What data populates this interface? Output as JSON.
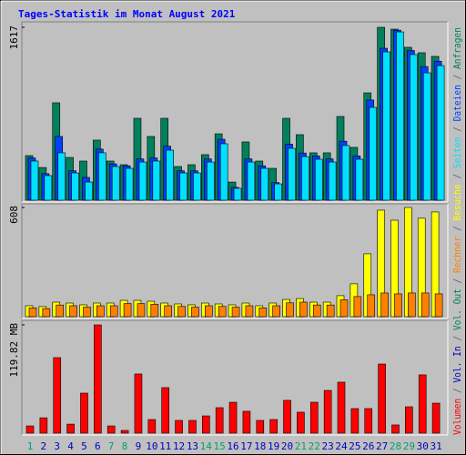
{
  "title": "Tages-Statistik im Monat August 2021",
  "categories": [
    "1",
    "2",
    "3",
    "4",
    "5",
    "6",
    "7",
    "8",
    "9",
    "10",
    "11",
    "12",
    "13",
    "14",
    "15",
    "16",
    "17",
    "18",
    "19",
    "20",
    "21",
    "22",
    "23",
    "24",
    "25",
    "26",
    "27",
    "28",
    "29",
    "30",
    "31"
  ],
  "category_colors": [
    "#00a070",
    "#0000c0",
    "#0000c0",
    "#0000c0",
    "#0000c0",
    "#0000c0",
    "#00a070",
    "#00a070",
    "#0000c0",
    "#0000c0",
    "#0000c0",
    "#0000c0",
    "#0000c0",
    "#00a070",
    "#00a070",
    "#0000c0",
    "#0000c0",
    "#0000c0",
    "#0000c0",
    "#0000c0",
    "#00a070",
    "#00a070",
    "#0000c0",
    "#0000c0",
    "#0000c0",
    "#0000c0",
    "#0000c0",
    "#00a070",
    "#00a070",
    "#0000c0",
    "#0000c0"
  ],
  "legend_separator": " / ",
  "chart_data": [
    {
      "type": "bar",
      "ylim": [
        0,
        1617
      ],
      "yticks": [
        1617
      ],
      "series": [
        {
          "name": "Anfragen",
          "color": "#00805c",
          "values": [
            417,
            306,
            911,
            400,
            366,
            562,
            366,
            332,
            766,
            596,
            766,
            315,
            332,
            426,
            621,
            170,
            545,
            366,
            298,
            766,
            613,
            443,
            443,
            783,
            494,
            1004,
            1617,
            1600,
            1430,
            1379,
            1345
          ]
        },
        {
          "name": "Dateien",
          "color": "#0040ff",
          "values": [
            395,
            248,
            596,
            275,
            213,
            478,
            340,
            322,
            386,
            395,
            505,
            275,
            275,
            386,
            570,
            120,
            386,
            322,
            165,
            524,
            441,
            414,
            386,
            552,
            414,
            937,
            1421,
            1590,
            1400,
            1250,
            1300
          ]
        },
        {
          "name": "Seiten",
          "color": "#00e0ff",
          "values": [
            366,
            230,
            443,
            255,
            170,
            443,
            315,
            298,
            357,
            366,
            468,
            255,
            255,
            357,
            528,
            111,
            357,
            298,
            153,
            485,
            408,
            383,
            357,
            511,
            383,
            868,
            1387,
            1574,
            1362,
            1191,
            1259
          ]
        }
      ]
    },
    {
      "type": "bar",
      "ylim": [
        0,
        608
      ],
      "yticks": [
        608
      ],
      "series": [
        {
          "name": "Besuche",
          "color": "#ffff00",
          "values": [
            61,
            56,
            81,
            76,
            66,
            76,
            76,
            91,
            91,
            86,
            76,
            71,
            66,
            76,
            71,
            66,
            76,
            61,
            76,
            96,
            101,
            81,
            81,
            117,
            183,
            350,
            593,
            537,
            608,
            548,
            583
          ]
        },
        {
          "name": "Rechner",
          "color": "#ff8000",
          "values": [
            49,
            45,
            65,
            61,
            53,
            61,
            61,
            73,
            73,
            69,
            61,
            57,
            53,
            61,
            57,
            53,
            61,
            49,
            61,
            77,
            81,
            65,
            65,
            94,
            112,
            122,
            132,
            127,
            132,
            132,
            127
          ]
        }
      ]
    },
    {
      "type": "bar",
      "ylim": [
        0,
        119.82
      ],
      "yticks": [
        {
          "value": 119.82,
          "label": "119.82 MB"
        }
      ],
      "series": [
        {
          "name": "Vol. Out",
          "color": "#00805c",
          "values": [
            0,
            0,
            0,
            0,
            0,
            0,
            0,
            0,
            0,
            0,
            0,
            0,
            0,
            0,
            0,
            0,
            0,
            0,
            0,
            0,
            0,
            0,
            0,
            0,
            0,
            0,
            0,
            0,
            0,
            0,
            0
          ]
        },
        {
          "name": "Vol. In",
          "color": "#0000c0",
          "values": [
            0,
            0,
            0,
            0,
            0,
            0,
            0,
            0,
            0,
            0,
            0,
            0,
            0,
            0,
            0,
            0,
            0,
            0,
            0,
            0,
            0,
            0,
            0,
            0,
            0,
            0,
            0,
            0,
            0,
            0,
            0
          ]
        },
        {
          "name": "Volumen",
          "color": "#ff0000",
          "values": [
            8,
            17,
            83.6,
            10,
            44.3,
            119.82,
            8,
            3,
            65.5,
            15.1,
            50.4,
            14.1,
            14.1,
            19.1,
            28.2,
            34.2,
            24.2,
            14.1,
            15.1,
            36.3,
            23.2,
            34.2,
            47.3,
            56.4,
            27.2,
            27.2,
            76.5,
            9.1,
            29.2,
            64.5,
            33.2
          ]
        }
      ]
    }
  ]
}
